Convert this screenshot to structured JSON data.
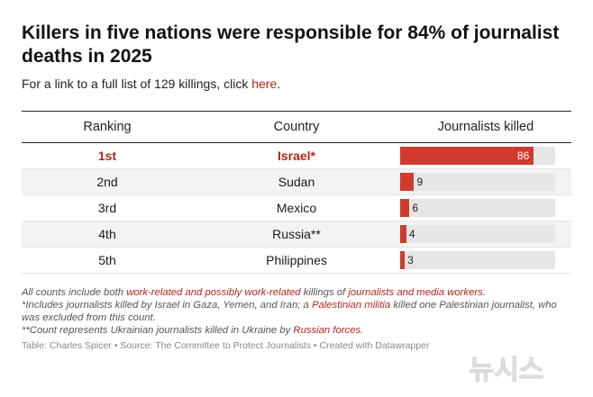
{
  "title": "Killers in five nations were responsible for 84% of journalist deaths in 2025",
  "subtitle": {
    "prefix": "For a link to a full list of 129 killings, click ",
    "link_text": "here",
    "suffix": "."
  },
  "colors": {
    "accent": "#d23a2e",
    "link": "#b3261e",
    "track": "#e6e6e6"
  },
  "chart_data": {
    "type": "table",
    "columns": [
      "Ranking",
      "Country",
      "Journalists killed"
    ],
    "rows": [
      {
        "rank": "1st",
        "country": "Israel*",
        "killed": 86,
        "highlight": true
      },
      {
        "rank": "2nd",
        "country": "Sudan",
        "killed": 9,
        "highlight": false
      },
      {
        "rank": "3rd",
        "country": "Mexico",
        "killed": 6,
        "highlight": false
      },
      {
        "rank": "4th",
        "country": "Russia**",
        "killed": 4,
        "highlight": false
      },
      {
        "rank": "5th",
        "country": "Philippines",
        "killed": 3,
        "highlight": false
      }
    ],
    "bar_max": 100
  },
  "notes": {
    "line1": {
      "a": "All counts include both ",
      "b": "work-related and possibly work-related",
      "c": " killings of ",
      "d": "journalists and media workers",
      "e": "."
    },
    "line2": {
      "a": "*Includes journalists killed by Israel in Gaza, Yemen, and Iran; a ",
      "b": "Palestinian militia",
      "c": " killed one Palestinian journalist, who was excluded from this count."
    },
    "line3": {
      "a": "**Count represents Ukrainian journalists killed in Ukraine by ",
      "b": "Russian forces",
      "c": "."
    }
  },
  "source": "Table: Charles Spicer • Source: The Committee to Protect Journalists • Created with Datawrapper",
  "watermark_text": "뉴시스"
}
